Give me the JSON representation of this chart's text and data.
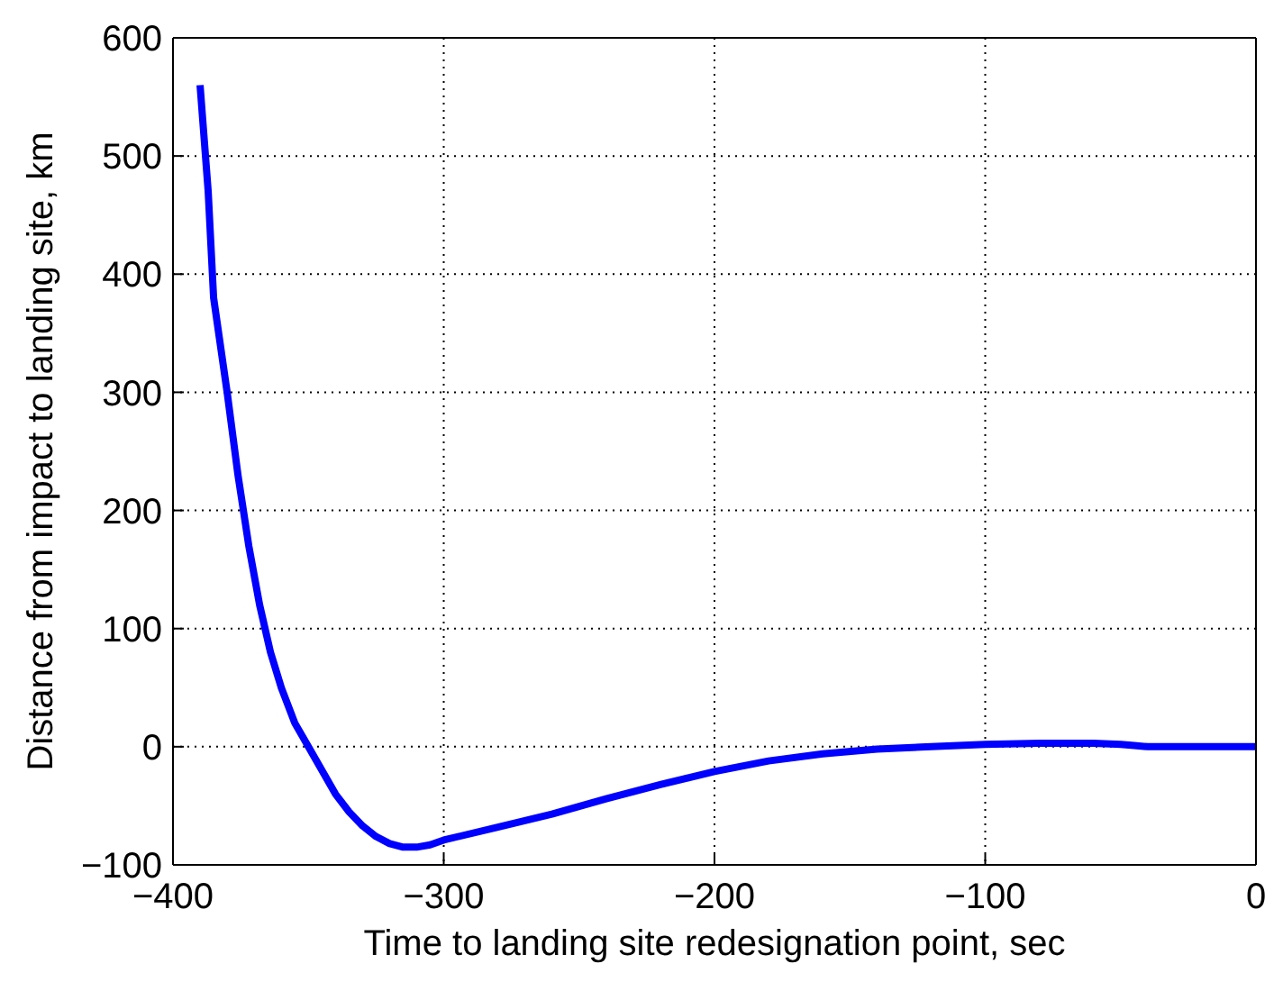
{
  "chart_data": {
    "type": "line",
    "xlabel": "Time to landing site redesignation point, sec",
    "ylabel": "Distance from impact to landing site, km",
    "x": [
      -390,
      -387,
      -385,
      -380,
      -376,
      -372,
      -368,
      -364,
      -360,
      -355,
      -350,
      -345,
      -340,
      -335,
      -330,
      -325,
      -320,
      -315,
      -310,
      -305,
      -300,
      -280,
      -260,
      -240,
      -220,
      -200,
      -180,
      -160,
      -140,
      -120,
      -100,
      -80,
      -70,
      -60,
      -50,
      -45,
      -40,
      -20,
      0
    ],
    "series": [
      {
        "color": "#0000ff",
        "values": [
          560,
          470,
          380,
          300,
          230,
          170,
          120,
          80,
          50,
          20,
          0,
          -20,
          -40,
          -55,
          -67,
          -76,
          -82,
          -85,
          -85,
          -83,
          -79,
          -68,
          -57,
          -44,
          -32,
          -21,
          -12,
          -6,
          -2,
          0,
          2,
          3,
          3,
          3,
          2,
          1,
          0,
          0,
          0
        ]
      }
    ],
    "xlim": [
      -400,
      0
    ],
    "xticks": [
      {
        "value": -400,
        "label": "−400"
      },
      {
        "value": -300,
        "label": "−300"
      },
      {
        "value": -200,
        "label": "−200"
      },
      {
        "value": -100,
        "label": "−100"
      },
      0
    ],
    "ylim": [
      -100,
      600
    ],
    "yticks": [
      {
        "value": -100,
        "label": "−100"
      },
      0,
      100,
      200,
      300,
      400,
      500,
      600
    ],
    "grid": true,
    "line_style": "solid",
    "marker": "none",
    "legend": false
  }
}
